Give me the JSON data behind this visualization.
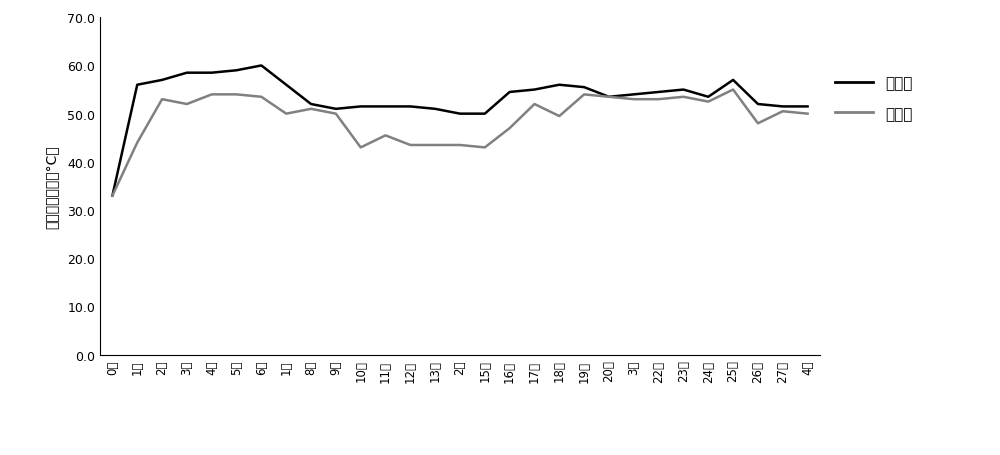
{
  "x_labels": [
    "0天",
    "1天",
    "2天",
    "3天",
    "4天",
    "5天",
    "6天",
    "1周",
    "8天",
    "9天",
    "10天",
    "11天",
    "12天",
    "13天",
    "2周",
    "15天",
    "16天",
    "17天",
    "18天",
    "19天",
    "20天",
    "3周",
    "22天",
    "23天",
    "24天",
    "25天",
    "26天",
    "27天",
    "4周"
  ],
  "experiment": [
    33,
    56,
    57,
    58.5,
    58.5,
    59,
    60,
    56,
    52,
    51,
    51.5,
    51.5,
    51.5,
    51,
    50,
    50,
    54.5,
    55,
    56,
    55.5,
    53.5,
    54,
    54.5,
    55,
    53.5,
    57,
    52,
    51.5,
    51.5
  ],
  "control": [
    33,
    44,
    53,
    52,
    54,
    54,
    53.5,
    50,
    51,
    50,
    43,
    45.5,
    43.5,
    43.5,
    43.5,
    43,
    47,
    52,
    49.5,
    54,
    53.5,
    53,
    53,
    53.5,
    52.5,
    55,
    48,
    50.5,
    50
  ],
  "ylabel": "堆肥平均温度（°C）",
  "ylim_min": 0.0,
  "ylim_max": 70.0,
  "yticks": [
    0.0,
    10.0,
    20.0,
    30.0,
    40.0,
    50.0,
    60.0,
    70.0
  ],
  "legend_experiment": "实验组",
  "legend_control": "对照组",
  "experiment_color": "#000000",
  "control_color": "#808080",
  "line_width": 1.8,
  "bg_color": "#ffffff"
}
